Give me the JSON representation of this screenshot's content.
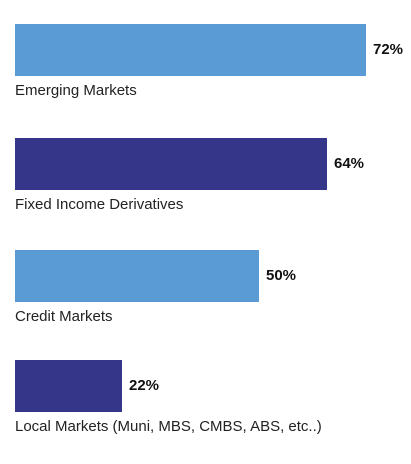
{
  "colors": {
    "light_bar": "#5b9bd5",
    "dark_bar": "#35358a"
  },
  "chart_data": {
    "type": "bar",
    "orientation": "horizontal",
    "categories": [
      "Emerging Markets",
      "Fixed Income Derivatives",
      "Credit Markets",
      "Local Markets (Muni, MBS, CMBS, ABS, etc..)"
    ],
    "values": [
      72,
      64,
      50,
      22
    ],
    "value_labels": [
      "72%",
      "64%",
      "50%",
      "22%"
    ],
    "bar_colors": [
      "#5b9bd5",
      "#35358a",
      "#5b9bd5",
      "#35358a"
    ],
    "xlim": [
      0,
      72
    ],
    "title": "",
    "xlabel": "",
    "ylabel": "",
    "grid": false,
    "legend": "none"
  }
}
